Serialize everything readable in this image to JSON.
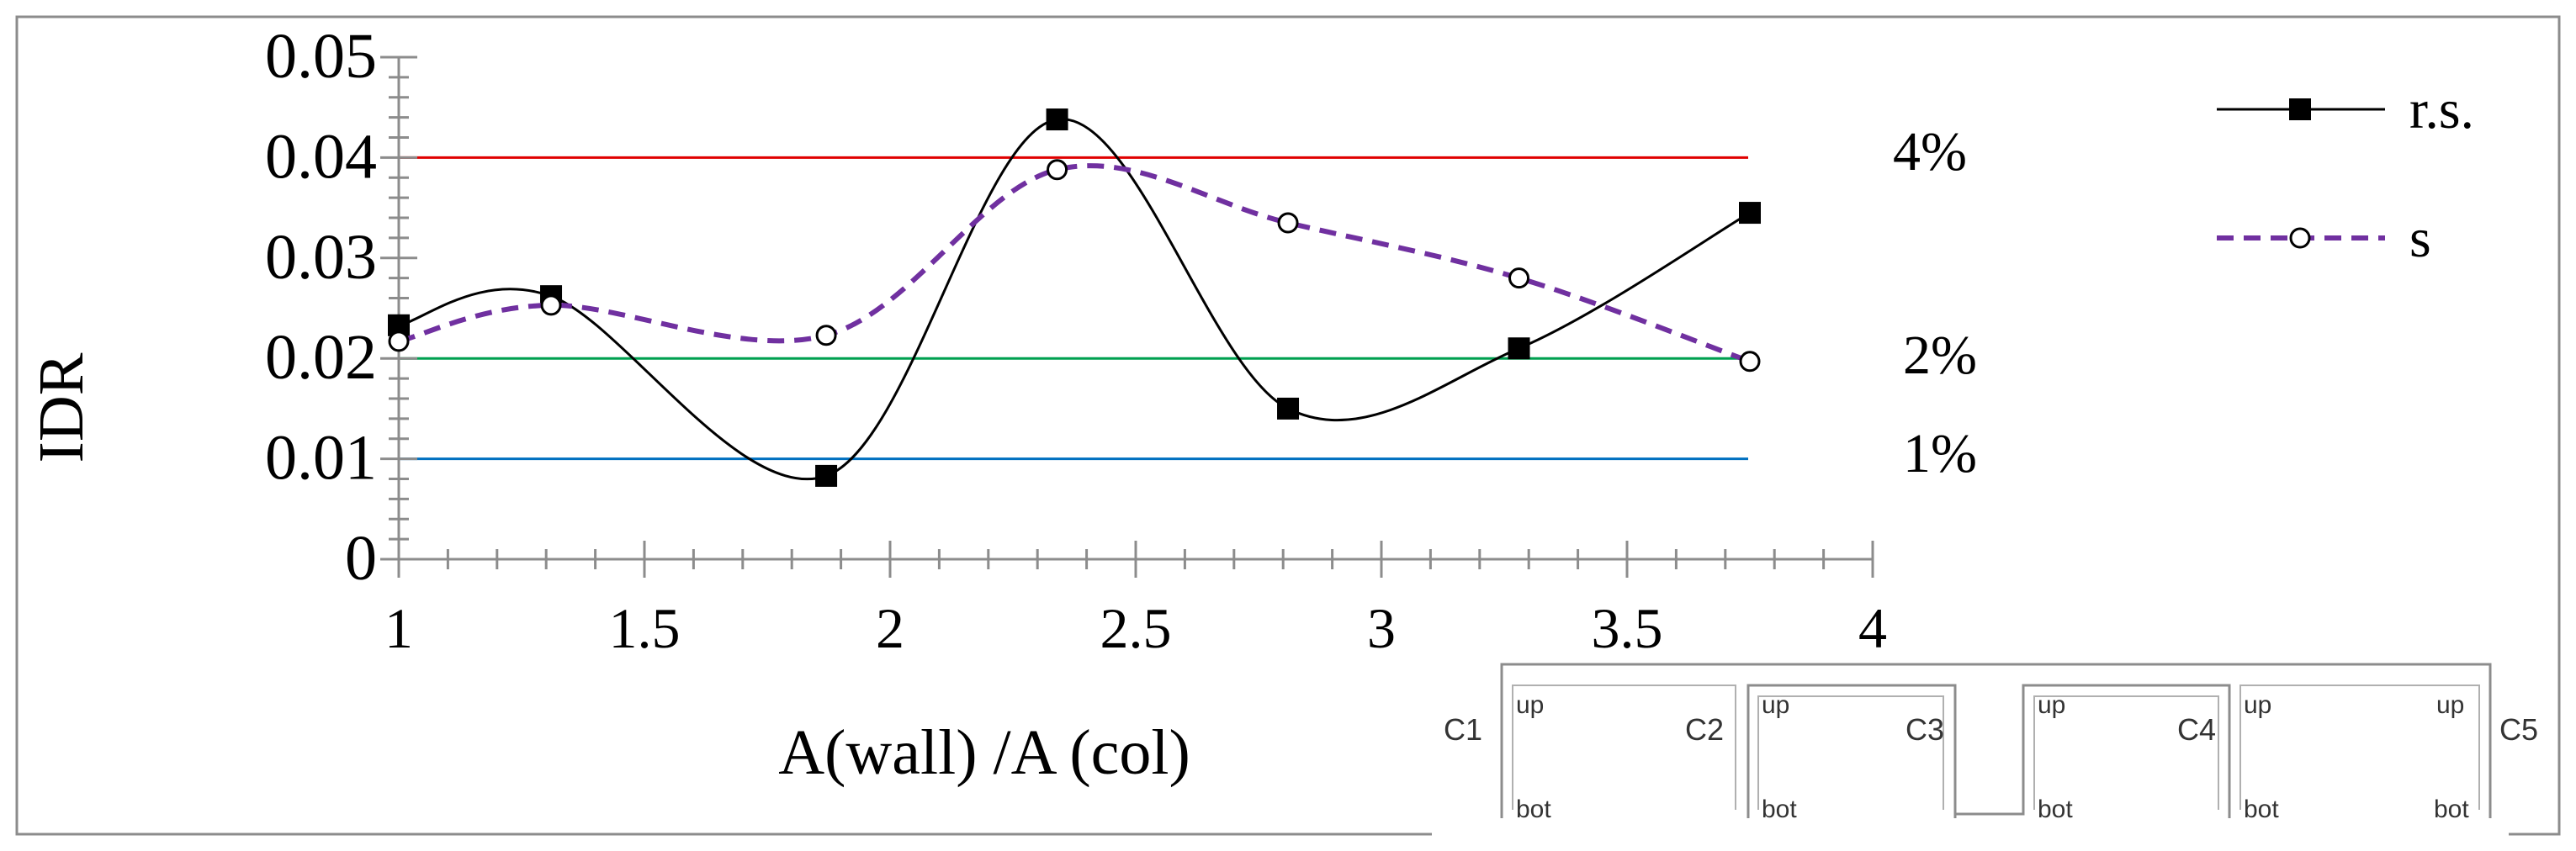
{
  "chart_data": {
    "type": "line",
    "title": "",
    "xlabel": "A(wall) /A (col)",
    "ylabel": "IDR",
    "xlim": [
      1,
      4
    ],
    "ylim": [
      0,
      0.05
    ],
    "x_ticks": [
      "1",
      "1.5",
      "2",
      "2.5",
      "3",
      "3.5",
      "4"
    ],
    "y_ticks": [
      "0",
      "0.01",
      "0.02",
      "0.03",
      "0.04",
      "0.05"
    ],
    "grid": false,
    "legend_position": "top-right",
    "series": [
      {
        "name": "r.s.",
        "color": "#000000",
        "marker": "filled-square",
        "line": "solid-smooth",
        "x": [
          1.0,
          1.31,
          1.87,
          2.34,
          2.81,
          3.28,
          3.75
        ],
        "values": [
          0.0233,
          0.0262,
          0.0083,
          0.0438,
          0.015,
          0.021,
          0.0345
        ]
      },
      {
        "name": "s",
        "color": "#7030a0",
        "marker": "open-circle",
        "line": "dashed-smooth",
        "x": [
          1.0,
          1.31,
          1.87,
          2.34,
          2.81,
          3.28,
          3.75
        ],
        "values": [
          0.0217,
          0.0253,
          0.0223,
          0.0388,
          0.0335,
          0.028,
          0.0197
        ]
      }
    ],
    "reference_lines": [
      {
        "value": 0.04,
        "label": "4%",
        "color": "#e00000"
      },
      {
        "value": 0.02,
        "label": "2%",
        "color": "#00a050"
      },
      {
        "value": 0.01,
        "label": "1%",
        "color": "#0070c0"
      }
    ]
  },
  "inset_diagram": {
    "columns": [
      "C1",
      "C2",
      "C3",
      "C4",
      "C5"
    ],
    "up_label": "up",
    "bot_label": "bot"
  }
}
